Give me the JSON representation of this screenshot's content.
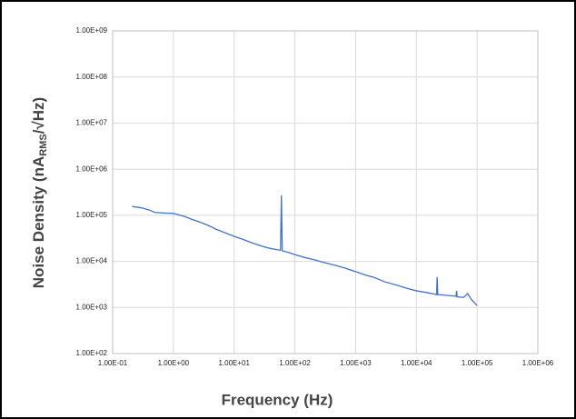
{
  "chart_data": {
    "type": "line",
    "xlabel": "Frequency (Hz)",
    "ylabel": [
      "Noise Density (nA",
      "RMS",
      "/√Hz)"
    ],
    "log_x": true,
    "log_y": true,
    "grid": true,
    "color": "#4472c4",
    "xlim": [
      0.1,
      1000000
    ],
    "ylim": [
      100,
      1000000000
    ],
    "xticks": [
      {
        "value": 0.1,
        "label": "1.00E-01"
      },
      {
        "value": 1,
        "label": "1.00E+00"
      },
      {
        "value": 10,
        "label": "1.00E+01"
      },
      {
        "value": 100,
        "label": "1.00E+02"
      },
      {
        "value": 1000,
        "label": "1.00E+03"
      },
      {
        "value": 10000,
        "label": "1.00E+04"
      },
      {
        "value": 100000,
        "label": "1.00E+05"
      },
      {
        "value": 1000000,
        "label": "1.00E+06"
      }
    ],
    "yticks": [
      {
        "value": 100,
        "label": "1.00E+02"
      },
      {
        "value": 1000,
        "label": "1.00E+03"
      },
      {
        "value": 10000,
        "label": "1.00E+04"
      },
      {
        "value": 100000,
        "label": "1.00E+05"
      },
      {
        "value": 1000000,
        "label": "1.00E+06"
      },
      {
        "value": 10000000,
        "label": "1.00E+07"
      },
      {
        "value": 100000000,
        "label": "1.00E+08"
      },
      {
        "value": 1000000000,
        "label": "1.00E+09"
      }
    ],
    "x": [
      0.21,
      0.3,
      0.4,
      0.5,
      0.7,
      1.0,
      1.5,
      2,
      3,
      4,
      5,
      7,
      10,
      14,
      20,
      30,
      40,
      50,
      58,
      60,
      62,
      80,
      100,
      150,
      200,
      300,
      500,
      700,
      1000,
      1500,
      2000,
      3000,
      5000,
      7000,
      10000,
      15000,
      20000,
      21500,
      22000,
      22500,
      30000,
      45000,
      46000,
      47000,
      60000,
      70000,
      80000,
      100000
    ],
    "values": [
      155000,
      145000,
      130000,
      115000,
      112000,
      110000,
      95000,
      82000,
      68000,
      58000,
      50000,
      42000,
      35000,
      30000,
      25000,
      21000,
      19000,
      18000,
      17500,
      270000,
      17000,
      15500,
      14000,
      12000,
      11000,
      9500,
      8000,
      7000,
      6000,
      5000,
      4500,
      3600,
      3000,
      2600,
      2300,
      2100,
      1950,
      1900,
      4600,
      1900,
      1850,
      1750,
      2300,
      1700,
      1650,
      2000,
      1500,
      1100
    ]
  }
}
